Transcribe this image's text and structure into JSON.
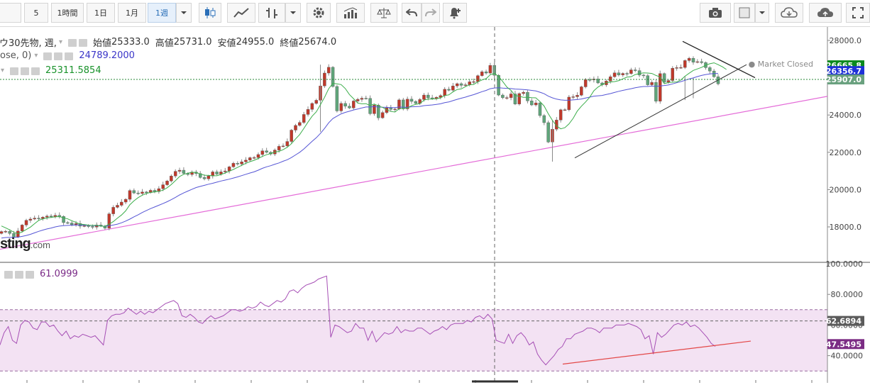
{
  "toolbar": {
    "intervals": [
      "5",
      "1時間",
      "1日",
      "1月",
      "1週"
    ],
    "active_interval": "1週",
    "icons": [
      "candlestick-icon",
      "line-chart-icon",
      "ohlc-bars-icon",
      "settings-icon",
      "indicators-icon",
      "compare-icon",
      "undo-icon",
      "redo-icon",
      "alert-icon",
      "camera-icon",
      "color-square-icon",
      "cloud-download-icon",
      "cloud-upload-icon",
      "fullscreen-icon"
    ]
  },
  "legend": {
    "title": "ウ30先物, 週,",
    "open_label": "始値",
    "open": "25333.0",
    "high_label": "高値",
    "high": "25731.0",
    "low_label": "安値",
    "low": "24955.0",
    "close_label": "終値",
    "close": "25674.0",
    "ma1_label": "ose, 0)",
    "ma1_value": "24789.2000",
    "ma2_value": "25311.5854",
    "rsi_value": "61.0999",
    "market_status": "Market Closed",
    "logo_text": "sting",
    "logo_suffix": ".com"
  },
  "colors": {
    "up": "#5fa57a",
    "down": "#c0392b",
    "ma_fast": "#3cae4b",
    "ma_slow": "#5555d5",
    "rsi_line": "#a64fb5",
    "rsi_band": "#f3e2f3",
    "pink_trend": "#e46bd8",
    "red_trend": "#e34747",
    "tag_green_dark": "#0a8a1e",
    "tag_blue": "#1f32d8",
    "tag_green": "#6aa17f",
    "tag_gray": "#5b5b5b",
    "tag_purple": "#7b2c84"
  },
  "chart_data": [
    {
      "type": "candlestick",
      "y_ticks": [
        "28000.0",
        "26000.0",
        "24000.0",
        "22000.0",
        "20000.0",
        "18000.0"
      ],
      "ylim": [
        16500,
        28300
      ],
      "price_tags": [
        "26665.8",
        "26356.7",
        "25907.0"
      ],
      "closes": [
        17750,
        17760,
        17650,
        17460,
        17780,
        18100,
        18350,
        18420,
        18470,
        18440,
        18520,
        18580,
        18540,
        18620,
        18560,
        18230,
        18210,
        18120,
        18180,
        18040,
        18060,
        18020,
        17990,
        18100,
        18050,
        17930,
        18700,
        19050,
        19160,
        19330,
        19480,
        19950,
        19820,
        19790,
        19870,
        19840,
        19960,
        19890,
        20050,
        20260,
        20460,
        20730,
        20980,
        21040,
        20870,
        20810,
        20940,
        20860,
        20650,
        20580,
        20730,
        20950,
        20830,
        20950,
        21000,
        21220,
        21410,
        21370,
        21490,
        21580,
        21710,
        21720,
        21880,
        22080,
        22000,
        21910,
        22120,
        22320,
        22340,
        22580,
        23190,
        23440,
        23600,
        24030,
        24300,
        24620,
        24790,
        25560,
        26250,
        26560,
        25530,
        24220,
        24620,
        24470,
        24380,
        24750,
        24840,
        24900,
        24890,
        24070,
        24530,
        23850,
        24130,
        24380,
        24300,
        24320,
        24810,
        24330,
        24850,
        24730,
        24620,
        24830,
        25070,
        24920,
        24870,
        24950,
        25040,
        25380,
        25330,
        25560,
        25680,
        25590,
        25620,
        25780,
        25790,
        26110,
        26320,
        26250,
        26660,
        26130,
        25070,
        24930,
        24930,
        25130,
        24590,
        25150,
        25220,
        24760,
        24540,
        24650,
        23970,
        23590,
        22550,
        23240,
        23730,
        24280,
        24280,
        24960,
        24980,
        25060,
        25510,
        25900,
        25880,
        25930,
        25720,
        25620,
        25820,
        26050,
        26260,
        26150,
        26230,
        26220,
        26420,
        26380,
        26140,
        26110,
        25620,
        25750,
        24740,
        26220,
        25760,
        25850,
        26510,
        26540,
        26550,
        26920,
        27040,
        26830,
        26860,
        26810,
        26540,
        26360,
        26050,
        25674
      ],
      "ma_fast": [
        18050,
        17950,
        17840,
        17710,
        17640,
        17730,
        17860,
        17990,
        18170,
        18350,
        18430,
        18480,
        18510,
        18540,
        18550,
        18490,
        18430,
        18330,
        18240,
        18150,
        18130,
        18090,
        18080,
        18080,
        18040,
        18030,
        18150,
        18280,
        18470,
        18640,
        18860,
        19190,
        19400,
        19570,
        19700,
        19790,
        19850,
        19870,
        19910,
        19970,
        20100,
        20270,
        20480,
        20700,
        20820,
        20880,
        20930,
        20920,
        20840,
        20770,
        20760,
        20740,
        20740,
        20810,
        20890,
        20990,
        21080,
        21190,
        21300,
        21410,
        21500,
        21570,
        21670,
        21780,
        21870,
        21930,
        22010,
        22050,
        22140,
        22270,
        22460,
        22720,
        22950,
        23280,
        23620,
        23940,
        24170,
        24550,
        24950,
        25410,
        25700,
        25670,
        25630,
        25420,
        25100,
        24880,
        24640,
        24600,
        24610,
        24500,
        24590,
        24480,
        24410,
        24280,
        24190,
        24160,
        24340,
        24360,
        24370,
        24500,
        24570,
        24610,
        24800,
        24850,
        24860,
        24870,
        24920,
        25040,
        25080,
        25240,
        25370,
        25400,
        25520,
        25620,
        25640,
        25780,
        25880,
        25950,
        26160,
        26230,
        26070,
        25800,
        25500,
        25320,
        25050,
        25000,
        24950,
        24950,
        24930,
        24920,
        24720,
        24480,
        24070,
        23710,
        23420,
        23260,
        23320,
        23520,
        23820,
        24210,
        24470,
        24700,
        24950,
        25300,
        25500,
        25630,
        25730,
        25770,
        25790,
        25840,
        25940,
        26030,
        26050,
        26170,
        26220,
        26260,
        26250,
        26230,
        26120,
        26040,
        25680,
        25740,
        25760,
        25770,
        25880,
        26080,
        26240,
        26390,
        26470,
        26550,
        26670,
        26750,
        26800,
        26700,
        26590,
        26440
      ],
      "ma_slow": [
        17400,
        17430,
        17440,
        17440,
        17450,
        17490,
        17540,
        17600,
        17680,
        17760,
        17830,
        17890,
        17940,
        18000,
        18040,
        18070,
        18080,
        18090,
        18100,
        18100,
        18090,
        18080,
        18070,
        18060,
        18050,
        18030,
        18060,
        18100,
        18150,
        18220,
        18310,
        18420,
        18540,
        18650,
        18770,
        18880,
        18980,
        19070,
        19160,
        19250,
        19350,
        19460,
        19580,
        19710,
        19820,
        19920,
        20020,
        20110,
        20170,
        20230,
        20290,
        20340,
        20400,
        20460,
        20510,
        20560,
        20620,
        20680,
        20750,
        20820,
        20890,
        20950,
        21040,
        21140,
        21220,
        21280,
        21360,
        21430,
        21520,
        21600,
        21720,
        21860,
        22000,
        22180,
        22380,
        22590,
        22780,
        23010,
        23280,
        23580,
        23810,
        23940,
        24060,
        24140,
        24200,
        24270,
        24320,
        24380,
        24430,
        24430,
        24450,
        24430,
        24420,
        24410,
        24400,
        24400,
        24430,
        24420,
        24420,
        24440,
        24450,
        24460,
        24500,
        24520,
        24540,
        24570,
        24600,
        24660,
        24700,
        24770,
        24840,
        24900,
        24960,
        25030,
        25090,
        25170,
        25250,
        25320,
        25410,
        25450,
        25460,
        25440,
        25430,
        25420,
        25390,
        25380,
        25370,
        25350,
        25320,
        25290,
        25220,
        25140,
        25010,
        24920,
        24850,
        24810,
        24790,
        24790,
        24810,
        24830,
        24860,
        24910,
        24960,
        25010,
        25030,
        25050,
        25100,
        25150,
        25210,
        25270,
        25320,
        25370,
        25410,
        25460,
        25500,
        25530,
        25530,
        25550,
        25540,
        25560,
        25580,
        25610,
        25670,
        25730,
        25790,
        25860,
        25930,
        25990,
        26060,
        26120,
        26170,
        26200,
        26220,
        26230
      ]
    },
    {
      "type": "line",
      "name": "RSI",
      "y_ticks": [
        "100.0000",
        "80.0000",
        "60.0000",
        "40.0000"
      ],
      "ylim": [
        30,
        100
      ],
      "band": [
        30,
        70
      ],
      "mid_line": 62.6894,
      "tags": [
        "62.6894",
        "47.5495"
      ],
      "values": [
        47,
        55,
        59,
        50,
        48,
        60,
        63,
        62,
        58,
        57,
        62,
        62,
        59,
        60,
        56,
        53,
        56,
        51,
        53,
        52,
        54,
        53,
        52,
        53,
        50,
        47,
        63,
        66,
        67,
        67,
        68,
        71,
        69,
        67,
        69,
        67,
        69,
        68,
        70,
        72,
        74,
        75,
        76,
        74,
        66,
        65,
        67,
        65,
        62,
        61,
        64,
        66,
        64,
        65,
        66,
        68,
        70,
        70,
        69,
        70,
        72,
        71,
        72,
        75,
        73,
        72,
        74,
        76,
        75,
        77,
        82,
        83,
        81,
        84,
        86,
        87,
        88,
        90,
        91,
        92,
        52,
        60,
        59,
        57,
        55,
        56,
        61,
        58,
        58,
        50,
        56,
        49,
        52,
        55,
        54,
        55,
        59,
        55,
        57,
        56,
        56,
        58,
        58,
        56,
        54,
        56,
        57,
        59,
        57,
        60,
        61,
        61,
        61,
        63,
        62,
        65,
        66,
        64,
        67,
        64,
        50,
        49,
        48,
        54,
        48,
        53,
        55,
        52,
        47,
        49,
        41,
        37,
        34,
        37,
        40,
        44,
        46,
        51,
        51,
        54,
        55,
        56,
        58,
        58,
        57,
        55,
        58,
        58,
        58,
        60,
        60,
        60,
        61,
        60,
        59,
        57,
        51,
        53,
        41,
        55,
        52,
        54,
        57,
        60,
        61,
        60,
        62,
        59,
        60,
        58,
        55,
        52,
        48,
        46
      ]
    }
  ]
}
